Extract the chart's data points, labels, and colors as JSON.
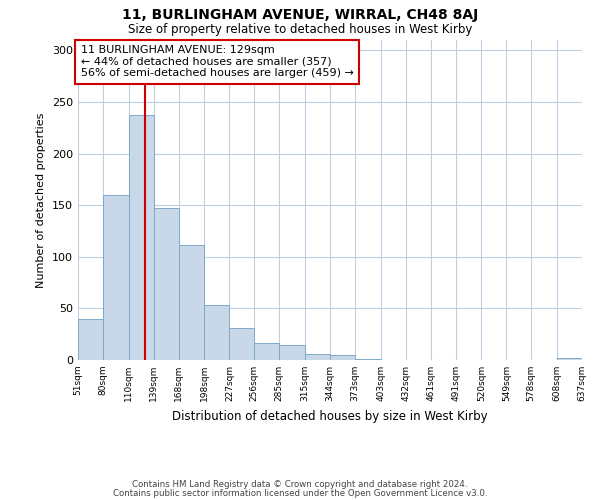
{
  "title": "11, BURLINGHAM AVENUE, WIRRAL, CH48 8AJ",
  "subtitle": "Size of property relative to detached houses in West Kirby",
  "xlabel": "Distribution of detached houses by size in West Kirby",
  "ylabel": "Number of detached properties",
  "bar_edges": [
    51,
    80,
    110,
    139,
    168,
    198,
    227,
    256,
    285,
    315,
    344,
    373,
    403,
    432,
    461,
    491,
    520,
    549,
    578,
    608,
    637
  ],
  "bar_heights": [
    40,
    160,
    237,
    147,
    111,
    53,
    31,
    16,
    15,
    6,
    5,
    1,
    0,
    0,
    0,
    0,
    0,
    0,
    0,
    2
  ],
  "bar_color": "#c8d8e8",
  "bar_edge_color": "#7fa8c8",
  "property_line_x": 129,
  "property_line_color": "#cc0000",
  "annotation_text": "11 BURLINGHAM AVENUE: 129sqm\n← 44% of detached houses are smaller (357)\n56% of semi-detached houses are larger (459) →",
  "annotation_box_color": "#ffffff",
  "annotation_box_edge": "#cc0000",
  "ylim": [
    0,
    310
  ],
  "xlim_left": 51,
  "xlim_right": 637,
  "tick_labels": [
    "51sqm",
    "80sqm",
    "110sqm",
    "139sqm",
    "168sqm",
    "198sqm",
    "227sqm",
    "256sqm",
    "285sqm",
    "315sqm",
    "344sqm",
    "373sqm",
    "403sqm",
    "432sqm",
    "461sqm",
    "491sqm",
    "520sqm",
    "549sqm",
    "578sqm",
    "608sqm",
    "637sqm"
  ],
  "footer1": "Contains HM Land Registry data © Crown copyright and database right 2024.",
  "footer2": "Contains public sector information licensed under the Open Government Licence v3.0.",
  "background_color": "#ffffff",
  "grid_color": "#c0cfe0",
  "yticks": [
    0,
    50,
    100,
    150,
    200,
    250,
    300
  ]
}
